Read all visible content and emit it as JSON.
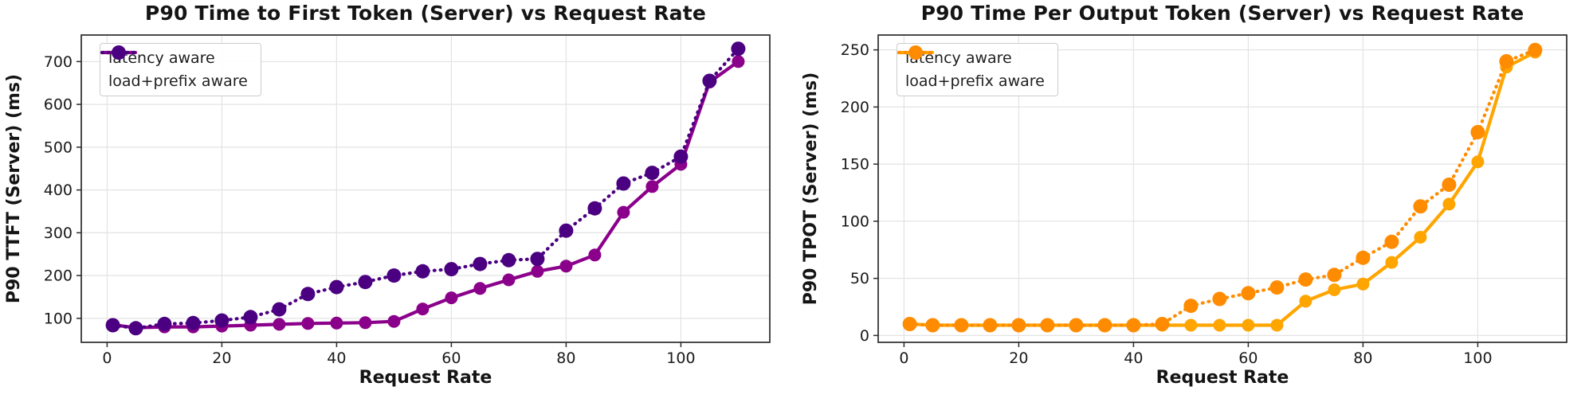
{
  "chart_data": [
    {
      "type": "line",
      "title": "P90 Time to First Token (Server) vs Request Rate",
      "xlabel": "Request Rate",
      "ylabel": "P90 TTFT (Server) (ms)",
      "xlim": [
        -4.5,
        115.5
      ],
      "ylim": [
        44,
        762
      ],
      "xticks": [
        0,
        20,
        40,
        60,
        80,
        100
      ],
      "yticks": [
        100,
        200,
        300,
        400,
        500,
        600,
        700
      ],
      "grid": true,
      "legend_position": "upper-left",
      "x": [
        1,
        5,
        10,
        15,
        20,
        25,
        30,
        35,
        40,
        45,
        50,
        55,
        60,
        65,
        70,
        75,
        80,
        85,
        90,
        95,
        100,
        105,
        110
      ],
      "series": [
        {
          "name": "latency aware",
          "style": "solid",
          "color": "#8B008B",
          "values": [
            85,
            78,
            80,
            80,
            82,
            84,
            86,
            88,
            89,
            90,
            93,
            122,
            148,
            170,
            190,
            210,
            222,
            248,
            348,
            408,
            460,
            652,
            700
          ]
        },
        {
          "name": "load+prefix aware",
          "style": "dotted",
          "color": "#4B0082",
          "values": [
            84,
            77,
            87,
            89,
            95,
            103,
            121,
            157,
            173,
            185,
            200,
            210,
            215,
            227,
            236,
            239,
            305,
            357,
            415,
            440,
            478,
            655,
            730
          ]
        }
      ]
    },
    {
      "type": "line",
      "title": "P90 Time Per Output Token (Server) vs Request Rate",
      "xlabel": "Request Rate",
      "ylabel": "P90 TPOT (Server) (ms)",
      "xlim": [
        -4.5,
        115.5
      ],
      "ylim": [
        -6,
        263
      ],
      "xticks": [
        0,
        20,
        40,
        60,
        80,
        100
      ],
      "yticks": [
        0,
        50,
        100,
        150,
        200,
        250
      ],
      "grid": true,
      "legend_position": "upper-left",
      "x": [
        1,
        5,
        10,
        15,
        20,
        25,
        30,
        35,
        40,
        45,
        50,
        55,
        60,
        65,
        70,
        75,
        80,
        85,
        90,
        95,
        100,
        105,
        110
      ],
      "series": [
        {
          "name": "latency aware",
          "style": "solid",
          "color": "#FFA500",
          "values": [
            10,
            9,
            9,
            9,
            9,
            9,
            9,
            9,
            9,
            9,
            9,
            9,
            9,
            9,
            30,
            40,
            45,
            64,
            86,
            115,
            152,
            235,
            248
          ]
        },
        {
          "name": "load+prefix aware",
          "style": "dotted",
          "color": "#FF8C00",
          "values": [
            10,
            9,
            9,
            9,
            9,
            9,
            9,
            9,
            9,
            10,
            26,
            32,
            37,
            42,
            49,
            53,
            68,
            82,
            113,
            132,
            178,
            240,
            250
          ]
        }
      ]
    }
  ],
  "style": {
    "grid_color": "#e3e3e3",
    "spine_color": "#2b2b2b",
    "tick_label_color": "#1a1a1a"
  }
}
